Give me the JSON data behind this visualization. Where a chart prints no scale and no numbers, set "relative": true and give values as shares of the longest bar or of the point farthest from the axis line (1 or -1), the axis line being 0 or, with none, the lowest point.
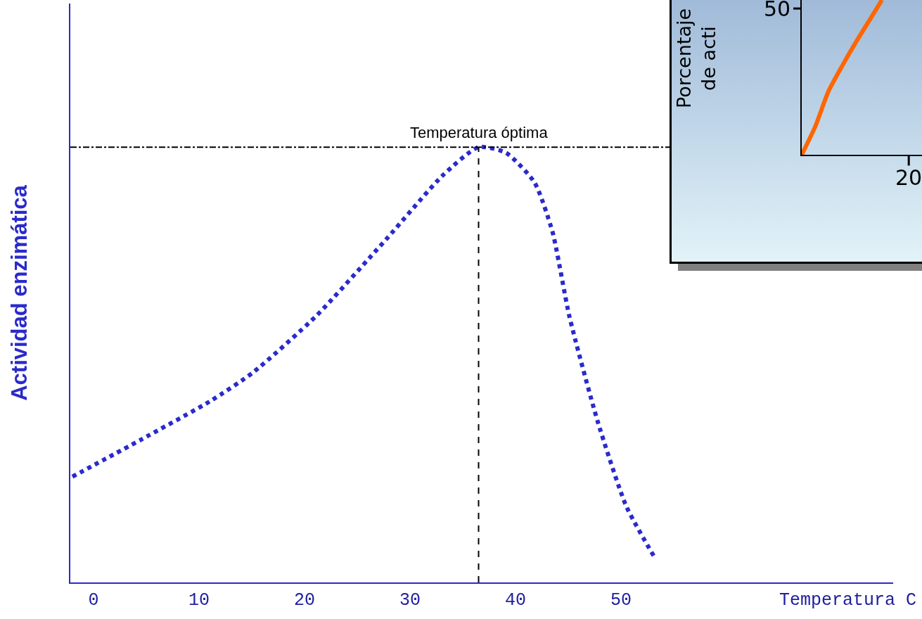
{
  "chart_data": [
    {
      "type": "line",
      "xlabel": "Temperatura C",
      "ylabel": "Actividad enzimática",
      "relative": true,
      "xlim": [
        -2.2,
        75.8
      ],
      "xticks": [
        0,
        10,
        20,
        30,
        40,
        50
      ],
      "grid": false,
      "marker": "none",
      "line_style": "dotted",
      "series": [
        {
          "color": "#2a2acc",
          "x": [
            -2.0,
            4.5,
            11.1,
            15.1,
            21.1,
            27.8,
            33.1,
            36.5,
            39.1,
            41.8,
            43.5,
            45.1,
            47.8,
            50.5,
            53.1
          ],
          "values": [
            0.243,
            0.328,
            0.417,
            0.482,
            0.612,
            0.79,
            0.935,
            1.0,
            0.987,
            0.919,
            0.806,
            0.612,
            0.369,
            0.175,
            0.061
          ]
        }
      ],
      "ref_lines": [
        {
          "axis": "x",
          "value": 36.5,
          "color": "#000000",
          "line_style": "dashed"
        },
        {
          "axis": "y",
          "value": 1.0,
          "color": "#000000",
          "line_style": "dashed"
        }
      ],
      "annotations": [
        {
          "text": "Temperatura óptima",
          "x": 36.5,
          "y": 1.0
        }
      ]
    },
    {
      "type": "line",
      "ylabel": "Porcentaje\nde acti",
      "relative": true,
      "categories": [
        null,
        null,
        null,
        null,
        null,
        null,
        null,
        null,
        null,
        null
      ],
      "grid": false,
      "marker": "none",
      "line_style": "solid",
      "series": [
        {
          "color": "#ff6600",
          "values": [
            0,
            0.18,
            0.41,
            0.57,
            0.72,
            0.86,
            1.0,
            null,
            null,
            null
          ]
        }
      ],
      "annotations": [
        "50",
        "20"
      ]
    }
  ]
}
